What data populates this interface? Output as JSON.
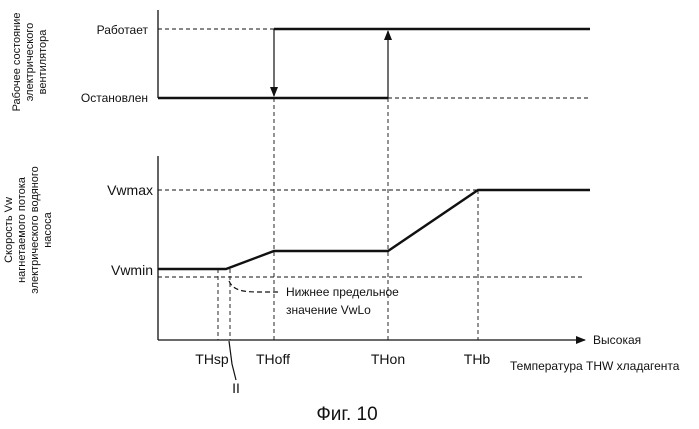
{
  "fan_panel": {
    "ylabel_lines": [
      "Рабочее состояние",
      "электрического",
      "вентилятора"
    ],
    "state_on": "Работает",
    "state_off": "Остановлен"
  },
  "pump_panel": {
    "ylabel_lines": [
      "Скорость Vw",
      "нагнетаемого потока",
      "электрического водяного",
      "насоса"
    ],
    "vwmax": "Vwmax",
    "vwmin": "Vwmin"
  },
  "annotation": {
    "lower_limit_line1": "Нижнее предельное",
    "lower_limit_line2": "значение VwLo",
    "roman_two": "II"
  },
  "x_axis": {
    "ticks": [
      "THsp",
      "THoff",
      "THon",
      "THb"
    ],
    "direction_label": "Высокая",
    "title": "Температура THW хладагента"
  },
  "caption": "Фиг. 10"
}
